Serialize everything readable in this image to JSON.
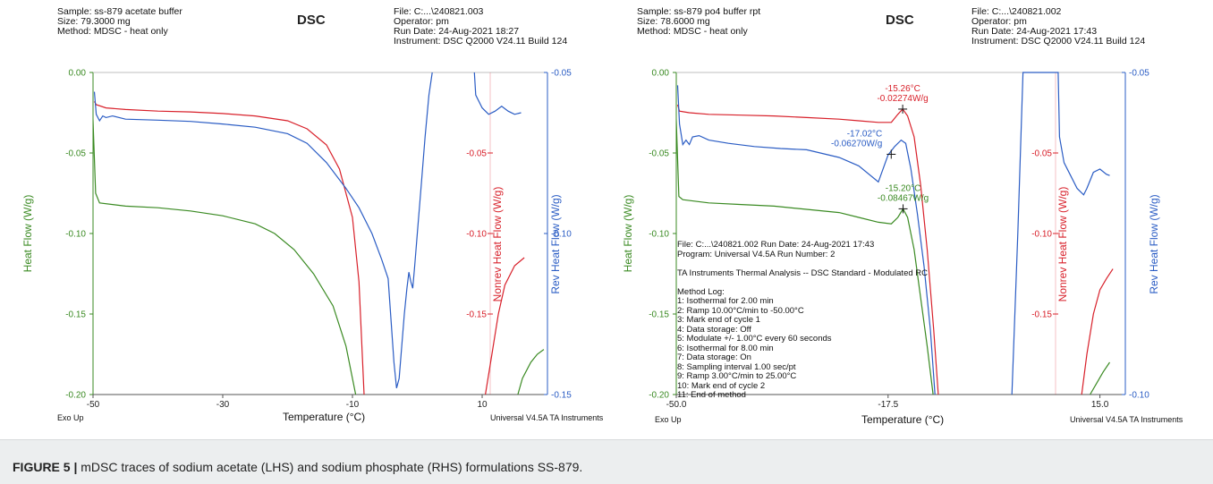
{
  "caption": {
    "label": "FIGURE 5 |",
    "text": " mDSC traces of sodium acetate (LHS) and sodium phosphate (RHS) formulations SS-879."
  },
  "colors": {
    "heat": "#3a8a22",
    "nonrev": "#d8202a",
    "rev": "#2a5cc4",
    "axis": "#555555"
  },
  "left": {
    "header": {
      "sample": "Sample: ss-879  acetate buffer",
      "size": "Size:  79.3000 mg",
      "method": "Method: MDSC - heat only",
      "dsc": "DSC",
      "file": "File: C:...\\240821.003",
      "operator": "Operator: pm",
      "run_date": "Run Date: 24-Aug-2021 18:27",
      "instrument": "Instrument: DSC Q2000 V24.11 Build 124"
    },
    "footer": {
      "exo": "Exo Up",
      "xlabel": "Temperature (°C)",
      "software": "Universal V4.5A TA Instruments"
    }
  },
  "right": {
    "header": {
      "sample": "Sample: ss-879 po4 buffer rpt",
      "size": "Size:  78.6000 mg",
      "method": "Method: MDSC - heat only",
      "dsc": "DSC",
      "file": "File: C:...\\240821.002",
      "operator": "Operator: pm",
      "run_date": "Run Date: 24-Aug-2021 17:43",
      "instrument": "Instrument: DSC Q2000 V24.11 Build 124"
    },
    "footer": {
      "exo": "Exo Up",
      "xlabel": "Temperature (°C)",
      "software": "Universal V4.5A TA Instruments"
    },
    "info_lines": [
      "File: C:...\\240821.002   Run Date: 24-Aug-2021 17:43",
      "Program:  Universal V4.5A   Run Number:  2",
      "",
      "TA Instruments Thermal Analysis  --  DSC Standard - Modulated RC",
      "",
      "Method Log:",
      "1: Isothermal for 2.00 min",
      "2: Ramp 10.00°C/min to -50.00°C",
      "3: Mark end of cycle 1",
      "4: Data storage: Off",
      "5: Modulate +/- 1.00°C every 60 seconds",
      "6: Isothermal for 8.00 min",
      "7: Data storage: On",
      "8: Sampling interval 1.00 sec/pt",
      "9: Ramp 3.00°C/min to 25.00°C",
      "10: Mark end of cycle 2",
      "11: End of method"
    ]
  },
  "chart_data": [
    {
      "type": "line",
      "title": "DSC",
      "xlabel": "Temperature (°C)",
      "ylabel_left": "Heat Flow (W/g)",
      "ylabel_right1": "Nonrev Heat Flow (W/g)",
      "ylabel_right2": "Rev Heat Flow (W/g)",
      "xlim": [
        -50,
        18
      ],
      "xticks": [
        -50,
        -30,
        -10,
        10
      ],
      "xtick_labels": [
        "-50",
        "-30",
        "-10",
        "10"
      ],
      "ylim_left": [
        -0.2,
        0.0
      ],
      "yticks_left": [
        "0.00",
        "-0.05",
        "-0.10",
        "-0.15",
        "-0.20"
      ],
      "ylim_nonrev": [
        -0.2,
        0.0
      ],
      "yticks_nonrev": [
        "-0.05",
        "-0.10",
        "-0.15"
      ],
      "ylim_rev": [
        -0.15,
        -0.05
      ],
      "yticks_rev": [
        "-0.05",
        "-0.10",
        "-0.15"
      ],
      "series": [
        {
          "name": "Heat Flow",
          "axis": "left",
          "points": [
            [
              -50.3,
              0.0
            ],
            [
              -50.0,
              -0.03
            ],
            [
              -49.6,
              -0.075
            ],
            [
              -49,
              -0.081
            ],
            [
              -45,
              -0.083
            ],
            [
              -40,
              -0.084
            ],
            [
              -35,
              -0.086
            ],
            [
              -30,
              -0.089
            ],
            [
              -25,
              -0.094
            ],
            [
              -22,
              -0.1
            ],
            [
              -19,
              -0.11
            ],
            [
              -16,
              -0.125
            ],
            [
              -13,
              -0.145
            ],
            [
              -11,
              -0.17
            ],
            [
              -10,
              -0.19
            ],
            [
              -9.5,
              -0.2
            ]
          ],
          "points2": [
            [
              15.5,
              -0.2
            ],
            [
              16.2,
              -0.19
            ],
            [
              17.5,
              -0.18
            ],
            [
              18.5,
              -0.175
            ],
            [
              19.5,
              -0.172
            ]
          ]
        },
        {
          "name": "Nonrev Heat Flow",
          "axis": "nonrev",
          "points": [
            [
              -49.8,
              -0.018
            ],
            [
              -49.5,
              -0.02
            ],
            [
              -48,
              -0.022
            ],
            [
              -45,
              -0.023
            ],
            [
              -40,
              -0.024
            ],
            [
              -35,
              -0.0245
            ],
            [
              -30,
              -0.0255
            ],
            [
              -25,
              -0.027
            ],
            [
              -20,
              -0.03
            ],
            [
              -17,
              -0.035
            ],
            [
              -14,
              -0.045
            ],
            [
              -12,
              -0.06
            ],
            [
              -10,
              -0.09
            ],
            [
              -9,
              -0.13
            ],
            [
              -8.2,
              -0.2
            ]
          ],
          "points2": [
            [
              10.5,
              -0.2
            ],
            [
              11.5,
              -0.175
            ],
            [
              12.5,
              -0.15
            ],
            [
              13.5,
              -0.132
            ],
            [
              15,
              -0.12
            ],
            [
              16.5,
              -0.115
            ]
          ]
        },
        {
          "name": "Rev Heat Flow",
          "axis": "rev",
          "points": [
            [
              -49.8,
              -0.056
            ],
            [
              -49.5,
              -0.063
            ],
            [
              -49,
              -0.065
            ],
            [
              -48.5,
              -0.0635
            ],
            [
              -48,
              -0.064
            ],
            [
              -47,
              -0.0635
            ],
            [
              -45,
              -0.0645
            ],
            [
              -40,
              -0.0648
            ],
            [
              -35,
              -0.0652
            ],
            [
              -30,
              -0.066
            ],
            [
              -25,
              -0.067
            ],
            [
              -20,
              -0.069
            ],
            [
              -17,
              -0.072
            ],
            [
              -14,
              -0.078
            ],
            [
              -11,
              -0.086
            ],
            [
              -9,
              -0.092
            ],
            [
              -7,
              -0.1
            ],
            [
              -5.5,
              -0.108
            ],
            [
              -4.5,
              -0.114
            ],
            [
              -3.6,
              -0.14
            ],
            [
              -3.2,
              -0.148
            ],
            [
              -2.8,
              -0.145
            ],
            [
              -2.4,
              -0.135
            ],
            [
              -2.0,
              -0.125
            ],
            [
              -1.6,
              -0.117
            ],
            [
              -1.3,
              -0.112
            ],
            [
              -1.0,
              -0.115
            ],
            [
              -0.7,
              -0.117
            ],
            [
              -0.4,
              -0.11
            ],
            [
              0.0,
              -0.1
            ],
            [
              0.6,
              -0.085
            ],
            [
              1.2,
              -0.07
            ],
            [
              1.8,
              -0.057
            ],
            [
              2.3,
              -0.05
            ]
          ],
          "points2": [
            [
              8.8,
              -0.05
            ],
            [
              9.0,
              -0.057
            ],
            [
              10,
              -0.061
            ],
            [
              11,
              -0.063
            ],
            [
              12,
              -0.062
            ],
            [
              13,
              -0.0605
            ],
            [
              14,
              -0.062
            ],
            [
              15,
              -0.063
            ],
            [
              16,
              -0.0625
            ]
          ]
        }
      ]
    },
    {
      "type": "line",
      "title": "DSC",
      "xlabel": "Temperature (°C)",
      "ylabel_left": "Heat Flow (W/g)",
      "ylabel_right1": "Nonrev Heat Flow (W/g)",
      "ylabel_right2": "Rev Heat Flow (W/g)",
      "xlim": [
        -50,
        20
      ],
      "xticks": [
        -50,
        -17.5,
        15
      ],
      "xtick_labels": [
        "-50.0",
        "-17.5",
        "15.0"
      ],
      "ylim_left": [
        -0.2,
        0.0
      ],
      "yticks_left": [
        "0.00",
        "-0.05",
        "-0.10",
        "-0.15",
        "-0.20"
      ],
      "ylim_nonrev": [
        -0.2,
        0.0
      ],
      "yticks_nonrev": [
        "-0.05",
        "-0.10",
        "-0.15"
      ],
      "ylim_rev": [
        -0.1,
        -0.05
      ],
      "yticks_rev": [
        "-0.05",
        "-0.10"
      ],
      "series": [
        {
          "name": "Heat Flow",
          "axis": "left",
          "points": [
            [
              -50.3,
              0.0
            ],
            [
              -50.0,
              -0.03
            ],
            [
              -49.6,
              -0.077
            ],
            [
              -49,
              -0.079
            ],
            [
              -45,
              -0.081
            ],
            [
              -40,
              -0.082
            ],
            [
              -35,
              -0.083
            ],
            [
              -30,
              -0.085
            ],
            [
              -25,
              -0.087
            ],
            [
              -22,
              -0.09
            ],
            [
              -19,
              -0.093
            ],
            [
              -17,
              -0.094
            ],
            [
              -16,
              -0.09
            ],
            [
              -15.2,
              -0.0847
            ],
            [
              -14.5,
              -0.09
            ],
            [
              -13.5,
              -0.11
            ],
            [
              -12.5,
              -0.14
            ],
            [
              -11.5,
              -0.17
            ],
            [
              -10.6,
              -0.2
            ]
          ],
          "points2": [
            [
              13.5,
              -0.2
            ],
            [
              14.5,
              -0.193
            ],
            [
              15.5,
              -0.186
            ],
            [
              16.5,
              -0.18
            ]
          ]
        },
        {
          "name": "Nonrev Heat Flow",
          "axis": "nonrev",
          "points": [
            [
              -49.8,
              -0.02
            ],
            [
              -49.5,
              -0.024
            ],
            [
              -48,
              -0.025
            ],
            [
              -45,
              -0.026
            ],
            [
              -40,
              -0.0265
            ],
            [
              -35,
              -0.027
            ],
            [
              -30,
              -0.028
            ],
            [
              -25,
              -0.029
            ],
            [
              -22,
              -0.03
            ],
            [
              -19,
              -0.031
            ],
            [
              -17,
              -0.031
            ],
            [
              -16,
              -0.026
            ],
            [
              -15.26,
              -0.0227
            ],
            [
              -14.5,
              -0.027
            ],
            [
              -13.5,
              -0.04
            ],
            [
              -12.5,
              -0.07
            ],
            [
              -11.5,
              -0.11
            ],
            [
              -10.5,
              -0.16
            ],
            [
              -9.8,
              -0.2
            ]
          ],
          "points2": [
            [
              12.2,
              -0.2
            ],
            [
              13,
              -0.175
            ],
            [
              14,
              -0.15
            ],
            [
              15,
              -0.135
            ],
            [
              16,
              -0.128
            ],
            [
              17,
              -0.122
            ]
          ]
        },
        {
          "name": "Rev Heat Flow",
          "axis": "rev",
          "points": [
            [
              -49.8,
              -0.052
            ],
            [
              -49.5,
              -0.058
            ],
            [
              -49,
              -0.0612
            ],
            [
              -48.5,
              -0.0605
            ],
            [
              -48,
              -0.0612
            ],
            [
              -47.5,
              -0.06
            ],
            [
              -46.5,
              -0.0598
            ],
            [
              -45,
              -0.0605
            ],
            [
              -42,
              -0.061
            ],
            [
              -38,
              -0.0615
            ],
            [
              -34,
              -0.0618
            ],
            [
              -30,
              -0.062
            ],
            [
              -25,
              -0.0632
            ],
            [
              -22,
              -0.0645
            ],
            [
              -19,
              -0.067
            ],
            [
              -17.5,
              -0.0628
            ],
            [
              -16.5,
              -0.0615
            ],
            [
              -15.5,
              -0.0605
            ],
            [
              -14.8,
              -0.061
            ],
            [
              -14,
              -0.065
            ],
            [
              -13,
              -0.072
            ],
            [
              -12,
              -0.08
            ],
            [
              -11,
              -0.09
            ],
            [
              -10.3,
              -0.1
            ]
          ],
          "points2": [
            [
              1.5,
              -0.1
            ],
            [
              2.4,
              -0.075
            ],
            [
              3.2,
              -0.05
            ],
            [
              8.6,
              -0.05
            ],
            [
              8.8,
              -0.06
            ],
            [
              9.5,
              -0.064
            ],
            [
              10.5,
              -0.066
            ],
            [
              11.5,
              -0.068
            ],
            [
              12.5,
              -0.069
            ],
            [
              13,
              -0.068
            ],
            [
              14,
              -0.0655
            ],
            [
              15,
              -0.065
            ],
            [
              16,
              -0.0658
            ],
            [
              16.5,
              -0.066
            ]
          ]
        }
      ],
      "annotations": [
        {
          "series": "Nonrev Heat Flow",
          "x": -15.26,
          "y": -0.02274,
          "line1": "-15.26°C",
          "line2": "-0.02274W/g",
          "color": "#d8202a"
        },
        {
          "series": "Rev Heat Flow",
          "x": -17.02,
          "y": -0.0627,
          "line1": "-17.02°C",
          "line2": "-0.06270W/g",
          "color": "#2a5cc4"
        },
        {
          "series": "Heat Flow",
          "x": -15.2,
          "y": -0.08467,
          "line1": "-15.20°C",
          "line2": "-0.08467W/g",
          "color": "#3a8a22"
        }
      ]
    }
  ]
}
